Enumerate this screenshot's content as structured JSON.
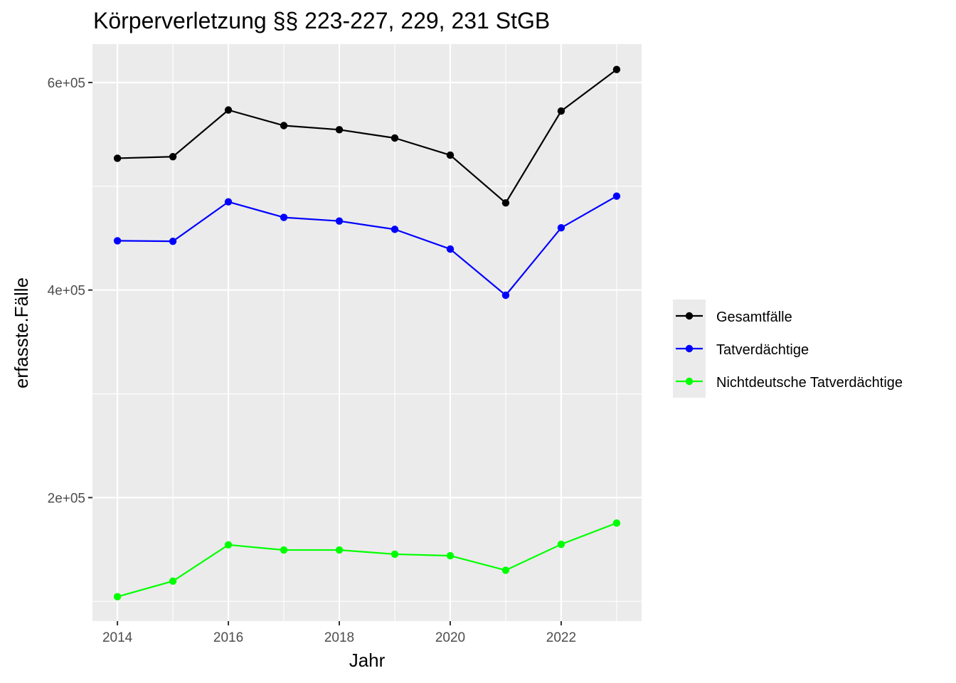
{
  "chart_data": {
    "type": "line",
    "title": "Körperverletzung §§ 223-227, 229, 231 StGB",
    "xlabel": "Jahr",
    "ylabel": "erfasste.Fälle",
    "x": [
      2014,
      2015,
      2016,
      2017,
      2018,
      2019,
      2020,
      2021,
      2022,
      2023
    ],
    "xlim": [
      2013.55,
      2023.45
    ],
    "ylim": [
      81000,
      637000
    ],
    "x_ticks": [
      2014,
      2016,
      2018,
      2020,
      2022
    ],
    "x_tick_labels": [
      "2014",
      "2016",
      "2018",
      "2020",
      "2022"
    ],
    "y_ticks": [
      200000,
      400000,
      600000
    ],
    "y_tick_labels": [
      "2e+05",
      "4e+05",
      "6e+05"
    ],
    "y_minor_ticks": [
      100000,
      300000,
      500000
    ],
    "grid": true,
    "legend_position": "right",
    "series": [
      {
        "name": "Gesamtfälle",
        "color": "#000000",
        "values": [
          527000,
          528500,
          573500,
          558500,
          554500,
          546500,
          530000,
          484000,
          572500,
          612500
        ]
      },
      {
        "name": "Tatverdächtige",
        "color": "#0000ff",
        "values": [
          447500,
          447000,
          485000,
          470000,
          466500,
          458500,
          439500,
          395000,
          460000,
          490500
        ]
      },
      {
        "name": "Nichtdeutsche Tatverdächtige",
        "color": "#00ff00",
        "values": [
          104500,
          119500,
          154500,
          149500,
          149500,
          145500,
          144000,
          130000,
          155000,
          175500
        ]
      }
    ]
  }
}
